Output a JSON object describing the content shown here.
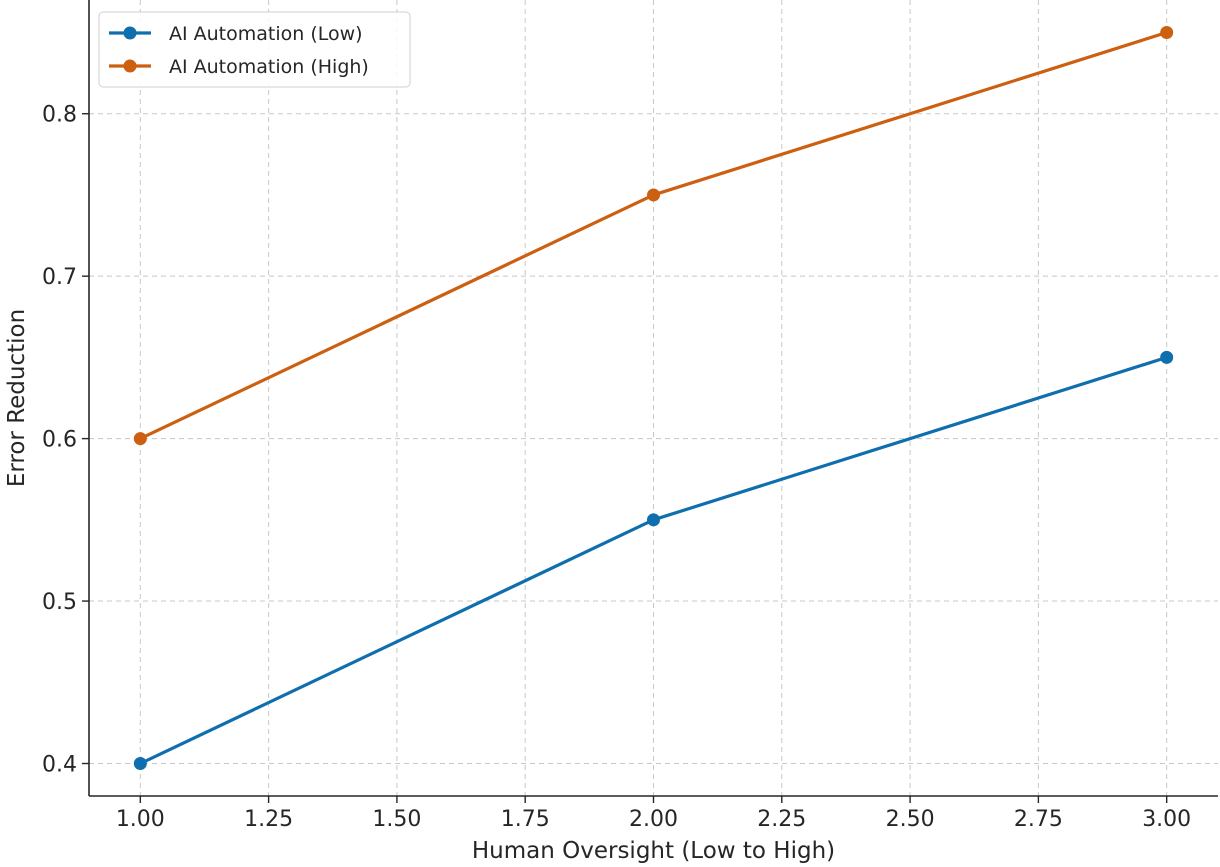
{
  "chart_data": {
    "type": "line",
    "title": "",
    "xlabel": "Human Oversight (Low to High)",
    "ylabel": "Error Reduction",
    "x": [
      1,
      2,
      3
    ],
    "xlim": [
      0.9,
      3.1
    ],
    "ylim": [
      0.38,
      0.87
    ],
    "xticks": [
      1.0,
      1.25,
      1.5,
      1.75,
      2.0,
      2.25,
      2.5,
      2.75,
      3.0
    ],
    "xtick_labels": [
      "1.00",
      "1.25",
      "1.50",
      "1.75",
      "2.00",
      "2.25",
      "2.50",
      "2.75",
      "3.00"
    ],
    "yticks": [
      0.4,
      0.5,
      0.6,
      0.7,
      0.8
    ],
    "ytick_labels": [
      "0.4",
      "0.5",
      "0.6",
      "0.7",
      "0.8"
    ],
    "grid": true,
    "legend_position": "top-left",
    "series": [
      {
        "name": "AI Automation (Low)",
        "values": [
          0.4,
          0.55,
          0.65
        ],
        "color": "#0f6fae"
      },
      {
        "name": "AI Automation (High)",
        "values": [
          0.6,
          0.75,
          0.85
        ],
        "color": "#cc5f10"
      }
    ]
  }
}
